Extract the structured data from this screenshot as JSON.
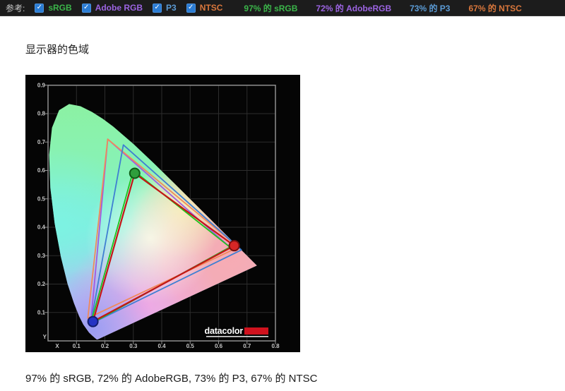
{
  "toolbar": {
    "label": "参考:",
    "checkbox_color": "#2b7cd3",
    "references": [
      {
        "name": "sRGB",
        "color": "#3bb54a",
        "checked": true
      },
      {
        "name": "Adobe RGB",
        "color": "#9c64e2",
        "checked": true
      },
      {
        "name": "P3",
        "color": "#5b9bd5",
        "checked": true
      },
      {
        "name": "NTSC",
        "color": "#d9773c",
        "checked": true
      }
    ],
    "results": [
      {
        "text": "97% 的 sRGB",
        "color": "#3bb54a"
      },
      {
        "text": "72% 的 AdobeRGB",
        "color": "#9c64e2"
      },
      {
        "text": "73% 的 P3",
        "color": "#5b9bd5"
      },
      {
        "text": "67% 的 NTSC",
        "color": "#d9773c"
      }
    ]
  },
  "heading": "显示器的色域",
  "caption": "97% 的 sRGB, 72% 的 AdobeRGB, 73% 的 P3, 67% 的 NTSC",
  "chart_data": {
    "type": "scatter",
    "subtype": "CIE-1931-chromaticity-diagram",
    "xlabel": "X",
    "ylabel": "Y",
    "xlim": [
      0,
      0.8
    ],
    "ylim": [
      0,
      0.9
    ],
    "x_ticks": [
      0.1,
      0.2,
      0.3,
      0.4,
      0.5,
      0.6,
      0.7,
      0.8
    ],
    "y_ticks": [
      0.1,
      0.2,
      0.3,
      0.4,
      0.5,
      0.6,
      0.7,
      0.8,
      0.9
    ],
    "grid": true,
    "logo_text": "datacolor",
    "logo_bar_color": "#d0121e",
    "gamuts": [
      {
        "name": "AdobeRGB",
        "color": "#a05ae0",
        "points": [
          [
            0.64,
            0.33
          ],
          [
            0.21,
            0.71
          ],
          [
            0.15,
            0.06
          ]
        ]
      },
      {
        "name": "NTSC",
        "color": "#f08a5a",
        "points": [
          [
            0.67,
            0.33
          ],
          [
            0.21,
            0.71
          ],
          [
            0.14,
            0.08
          ]
        ]
      },
      {
        "name": "P3",
        "color": "#3f7fd2",
        "points": [
          [
            0.68,
            0.32
          ],
          [
            0.265,
            0.69
          ],
          [
            0.15,
            0.06
          ]
        ]
      },
      {
        "name": "sRGB",
        "color": "#1ec41e",
        "points": [
          [
            0.64,
            0.33
          ],
          [
            0.3,
            0.6
          ],
          [
            0.15,
            0.06
          ]
        ]
      },
      {
        "name": "display",
        "color": "#c41616",
        "points": [
          [
            0.655,
            0.335
          ],
          [
            0.305,
            0.59
          ],
          [
            0.158,
            0.068
          ]
        ],
        "markers": [
          {
            "xy": [
              0.655,
              0.335
            ],
            "fill": "#d62626",
            "stroke": "#7a1010"
          },
          {
            "xy": [
              0.305,
              0.59
            ],
            "fill": "#2f9e3c",
            "stroke": "#0e5c16"
          },
          {
            "xy": [
              0.158,
              0.068
            ],
            "fill": "#2433c4",
            "stroke": "#121c6e"
          }
        ]
      }
    ],
    "spectral_locus": [
      [
        0.1741,
        0.005
      ],
      [
        0.1714,
        0.0051
      ],
      [
        0.1644,
        0.0109
      ],
      [
        0.1566,
        0.0177
      ],
      [
        0.144,
        0.0297
      ],
      [
        0.1241,
        0.0578
      ],
      [
        0.1096,
        0.0868
      ],
      [
        0.0913,
        0.1327
      ],
      [
        0.0687,
        0.2007
      ],
      [
        0.0454,
        0.295
      ],
      [
        0.0235,
        0.4127
      ],
      [
        0.0082,
        0.5384
      ],
      [
        0.0039,
        0.6548
      ],
      [
        0.0139,
        0.7502
      ],
      [
        0.0389,
        0.812
      ],
      [
        0.0743,
        0.8338
      ],
      [
        0.1142,
        0.8262
      ],
      [
        0.1547,
        0.8059
      ],
      [
        0.1929,
        0.7816
      ],
      [
        0.2296,
        0.7543
      ],
      [
        0.3016,
        0.6923
      ],
      [
        0.3731,
        0.6245
      ],
      [
        0.4441,
        0.5547
      ],
      [
        0.5125,
        0.4866
      ],
      [
        0.5752,
        0.4242
      ],
      [
        0.627,
        0.3725
      ],
      [
        0.6658,
        0.334
      ],
      [
        0.6915,
        0.3083
      ],
      [
        0.7079,
        0.292
      ],
      [
        0.719,
        0.2809
      ],
      [
        0.7334,
        0.2666
      ],
      [
        0.7347,
        0.2653
      ]
    ]
  }
}
